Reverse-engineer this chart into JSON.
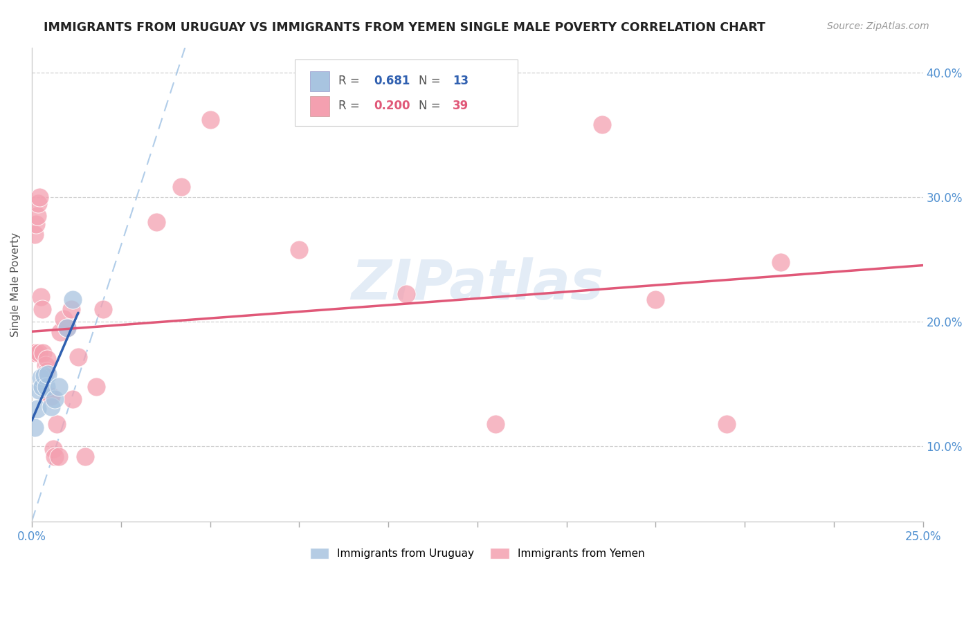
{
  "title": "IMMIGRANTS FROM URUGUAY VS IMMIGRANTS FROM YEMEN SINGLE MALE POVERTY CORRELATION CHART",
  "source": "Source: ZipAtlas.com",
  "ylabel": "Single Male Poverty",
  "xlim": [
    0,
    0.25
  ],
  "ylim": [
    0.04,
    0.42
  ],
  "x_ticks": [
    0.0,
    0.025,
    0.05,
    0.075,
    0.1,
    0.125,
    0.15,
    0.175,
    0.2,
    0.225,
    0.25
  ],
  "x_tick_labels_show": [
    0.0,
    0.25
  ],
  "y_ticks_right": [
    0.1,
    0.2,
    0.3,
    0.4
  ],
  "legend_r_uruguay": "0.681",
  "legend_n_uruguay": "13",
  "legend_r_yemen": "0.200",
  "legend_n_yemen": "39",
  "uruguay_color": "#a8c4e0",
  "yemen_color": "#f4a0b0",
  "uruguay_line_color": "#3060b0",
  "yemen_line_color": "#e05878",
  "watermark_text": "ZIPatlas",
  "uruguay_x": [
    0.0008,
    0.0015,
    0.002,
    0.0025,
    0.003,
    0.0035,
    0.004,
    0.0045,
    0.0055,
    0.0065,
    0.0075,
    0.01,
    0.0115
  ],
  "uruguay_y": [
    0.115,
    0.13,
    0.145,
    0.155,
    0.148,
    0.157,
    0.148,
    0.158,
    0.132,
    0.138,
    0.148,
    0.195,
    0.218
  ],
  "yemen_x": [
    0.0005,
    0.0008,
    0.001,
    0.0012,
    0.0015,
    0.0018,
    0.002,
    0.0022,
    0.0025,
    0.003,
    0.0032,
    0.0038,
    0.004,
    0.0042,
    0.005,
    0.0055,
    0.006,
    0.0065,
    0.007,
    0.0075,
    0.008,
    0.009,
    0.01,
    0.011,
    0.0115,
    0.013,
    0.015,
    0.018,
    0.02,
    0.035,
    0.042,
    0.05,
    0.075,
    0.105,
    0.13,
    0.16,
    0.175,
    0.195,
    0.21
  ],
  "yemen_y": [
    0.175,
    0.27,
    0.175,
    0.278,
    0.285,
    0.295,
    0.175,
    0.3,
    0.22,
    0.21,
    0.175,
    0.165,
    0.16,
    0.17,
    0.14,
    0.14,
    0.098,
    0.092,
    0.118,
    0.092,
    0.192,
    0.202,
    0.195,
    0.21,
    0.138,
    0.172,
    0.092,
    0.148,
    0.21,
    0.28,
    0.308,
    0.362,
    0.258,
    0.222,
    0.118,
    0.358,
    0.218,
    0.118,
    0.248
  ],
  "background_color": "#ffffff",
  "grid_color": "#cccccc",
  "diag_line_x": [
    0.0,
    0.043
  ],
  "diag_line_y": [
    0.04,
    0.42
  ]
}
